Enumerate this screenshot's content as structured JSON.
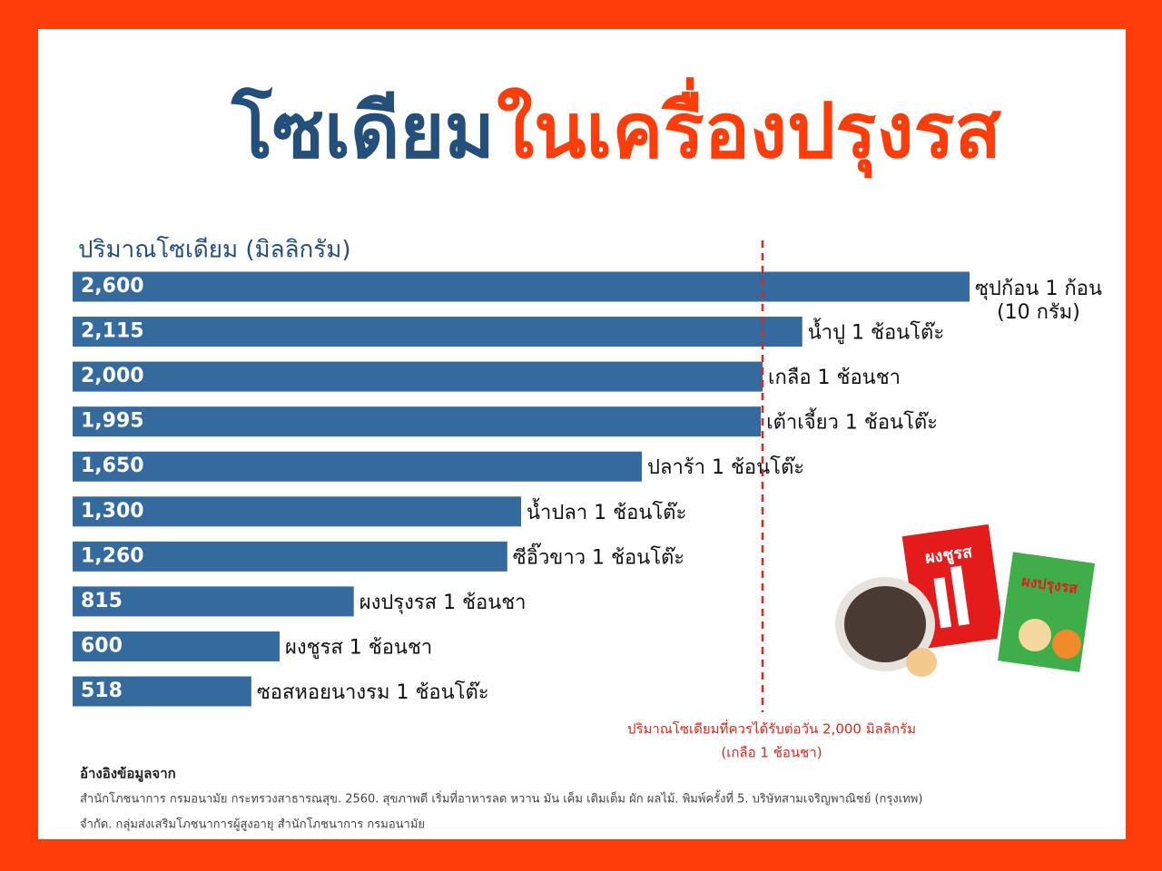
{
  "chart_data": {
    "type": "barh",
    "title": "โซเดียม",
    "title_highlight": "ในเครื่องปรุงรส",
    "value_axis_label": "ปริมาณโซเดียม (มิลลิกรัม)",
    "categories": [
      "ซุปก้อน 1 ก้อน\n(10 กรัม)",
      "น้ำปู 1 ช้อนโต๊ะ",
      "เกลือ 1 ช้อนชา",
      "เต้าเจี้ยว 1 ช้อนโต๊ะ",
      "ปลาร้า 1 ช้อนโต๊ะ",
      "น้ำปลา 1 ช้อนโต๊ะ",
      "ซีอิ๊วขาว 1 ช้อนโต๊ะ",
      "ผงปรุงรส 1 ช้อนชา",
      "ผงชูรส 1 ช้อนชา",
      "ซอสหอยนางรม 1 ช้อนโต๊ะ"
    ],
    "values": [
      2600,
      2115,
      2000,
      1995,
      1650,
      1300,
      1260,
      815,
      600,
      518
    ],
    "value_labels": [
      "2,600",
      "2,115",
      "2,000",
      "1,995",
      "1,650",
      "1,300",
      "1,260",
      "815",
      "600",
      "518"
    ],
    "color": "#356a9e",
    "reference_value": 2000,
    "reference_color": "#d62a1e",
    "reference_label": [
      "ปริมาณโซเดียมที่ควรได้รับต่อวัน 2,000 มิลลิกรัม",
      "(เกลือ 1 ช้อนชา)"
    ],
    "image_labels": [
      "ผงชูรส",
      "ผงปรุงรส"
    ],
    "source_heading": "อ้างอิงข้อมูลจาก",
    "source_lines": [
      "สำนักโภชนาการ กรมอนามัย กระทรวงสาธารณสุข. 2560. สุขภาพดี เริ่มที่อาหารลด หวาน มัน เค็ม เติมเต็ม ผัก ผลไม้. พิมพ์ครั้งที่ 5. บริษัทสามเจริญพาณิชย์ (กรุงเทพ)",
      "จำกัด. กลุ่มส่งเสริมโภชนาการผู้สูงอายุ สำนักโภชนาการ กรมอนามัย"
    ]
  }
}
